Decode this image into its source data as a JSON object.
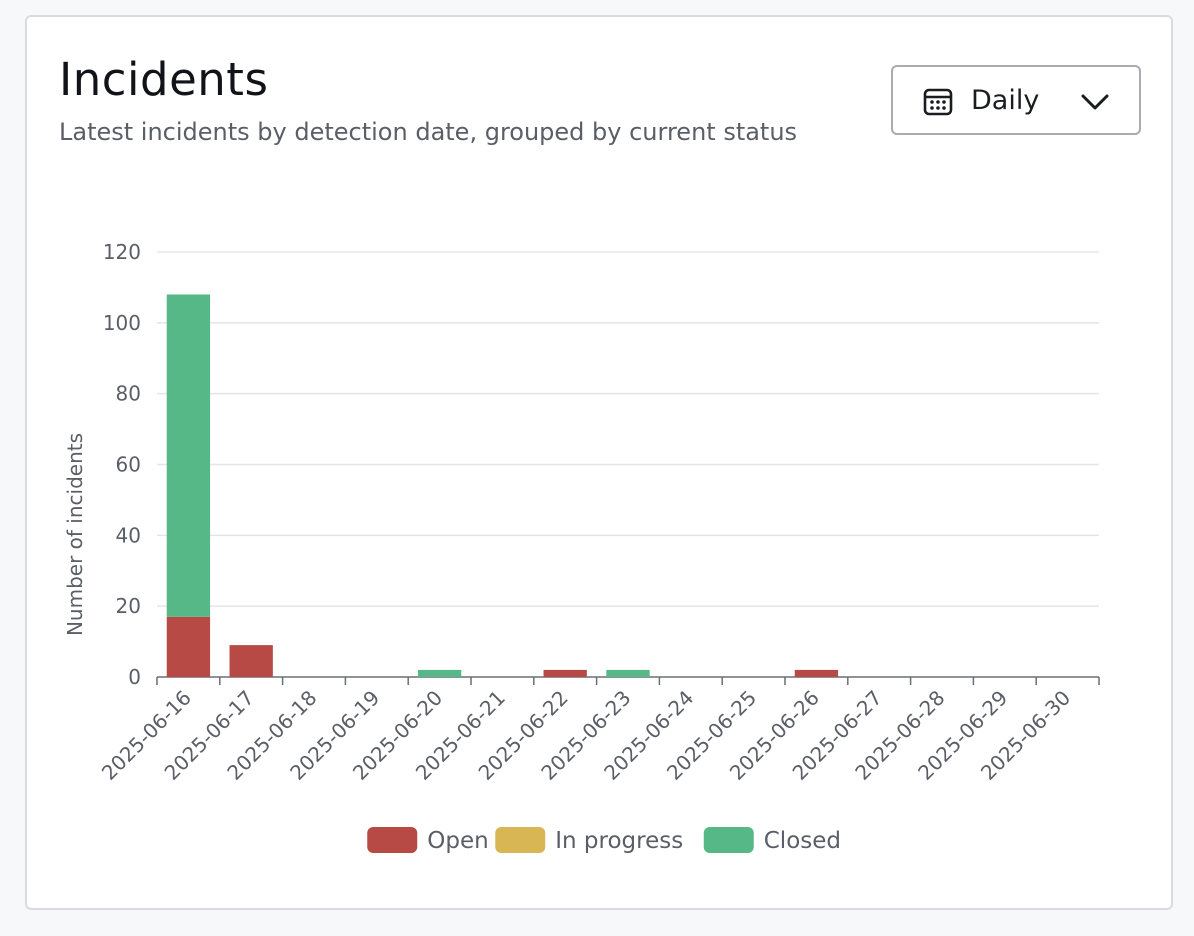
{
  "card": {
    "title": "Incidents",
    "subtitle": "Latest incidents by detection date, grouped by current status"
  },
  "period_select": {
    "value": "Daily",
    "icon": "calendar-icon",
    "chevron_icon": "chevron-down-icon"
  },
  "chart_data": {
    "type": "bar",
    "stacked": true,
    "ylabel": "Number of incidents",
    "ylim": [
      0,
      120
    ],
    "yticks": [
      0,
      20,
      40,
      60,
      80,
      100,
      120
    ],
    "grid": true,
    "legend_position": "bottom",
    "categories": [
      "2025-06-16",
      "2025-06-17",
      "2025-06-18",
      "2025-06-19",
      "2025-06-20",
      "2025-06-21",
      "2025-06-22",
      "2025-06-23",
      "2025-06-24",
      "2025-06-25",
      "2025-06-26",
      "2025-06-27",
      "2025-06-28",
      "2025-06-29",
      "2025-06-30"
    ],
    "series": [
      {
        "name": "Open",
        "color": "#b84a45",
        "values": [
          17,
          9,
          0,
          0,
          0,
          0,
          2,
          0,
          0,
          0,
          2,
          0,
          0,
          0,
          0
        ]
      },
      {
        "name": "In progress",
        "color": "#d8b654",
        "values": [
          0,
          0,
          0,
          0,
          0,
          0,
          0,
          0,
          0,
          0,
          0,
          0,
          0,
          0,
          0
        ]
      },
      {
        "name": "Closed",
        "color": "#55b886",
        "values": [
          91,
          0,
          0,
          0,
          2,
          0,
          0,
          2,
          0,
          0,
          0,
          0,
          0,
          0,
          0
        ]
      }
    ]
  }
}
